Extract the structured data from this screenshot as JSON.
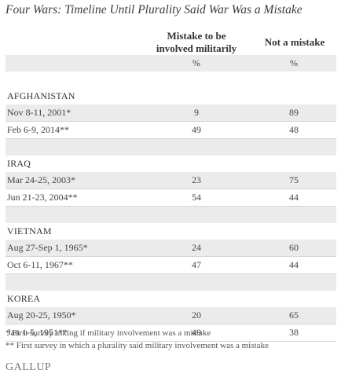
{
  "title": "Four Wars: Timeline Until Plurality Said War Was a Mistake",
  "headers": {
    "col1_line1": "Mistake to be",
    "col1_line2": "involved militarily",
    "col2": "Not a mistake",
    "pct1": "%",
    "pct2": "%"
  },
  "rows": [
    {
      "type": "section",
      "label": "AFGHANISTAN"
    },
    {
      "type": "data",
      "label": "Nov 8-11, 2001*",
      "mistake": "9",
      "not_mistake": "89"
    },
    {
      "type": "data",
      "label": "Feb 6-9, 2014**",
      "mistake": "49",
      "not_mistake": "48"
    },
    {
      "type": "section",
      "label": "IRAQ"
    },
    {
      "type": "data",
      "label": "Mar 24-25, 2003*",
      "mistake": "23",
      "not_mistake": "75"
    },
    {
      "type": "data",
      "label": "Jun 21-23, 2004**",
      "mistake": "54",
      "not_mistake": "44"
    },
    {
      "type": "section",
      "label": "VIETNAM"
    },
    {
      "type": "data",
      "label": "Aug 27-Sep 1, 1965*",
      "mistake": "24",
      "not_mistake": "60"
    },
    {
      "type": "data",
      "label": "Oct 6-11, 1967**",
      "mistake": "47",
      "not_mistake": "44"
    },
    {
      "type": "section",
      "label": "KOREA"
    },
    {
      "type": "data",
      "label": "Aug 20-25, 1950*",
      "mistake": "20",
      "not_mistake": "65"
    },
    {
      "type": "data",
      "label": "Jan 1-5, 1951**",
      "mistake": "49",
      "not_mistake": "38"
    }
  ],
  "footnotes": [
    "* First survey asking if military involvement was a mistake",
    "** First survey in which a plurality said military involvement was a mistake"
  ],
  "logo": "GALLUP"
}
